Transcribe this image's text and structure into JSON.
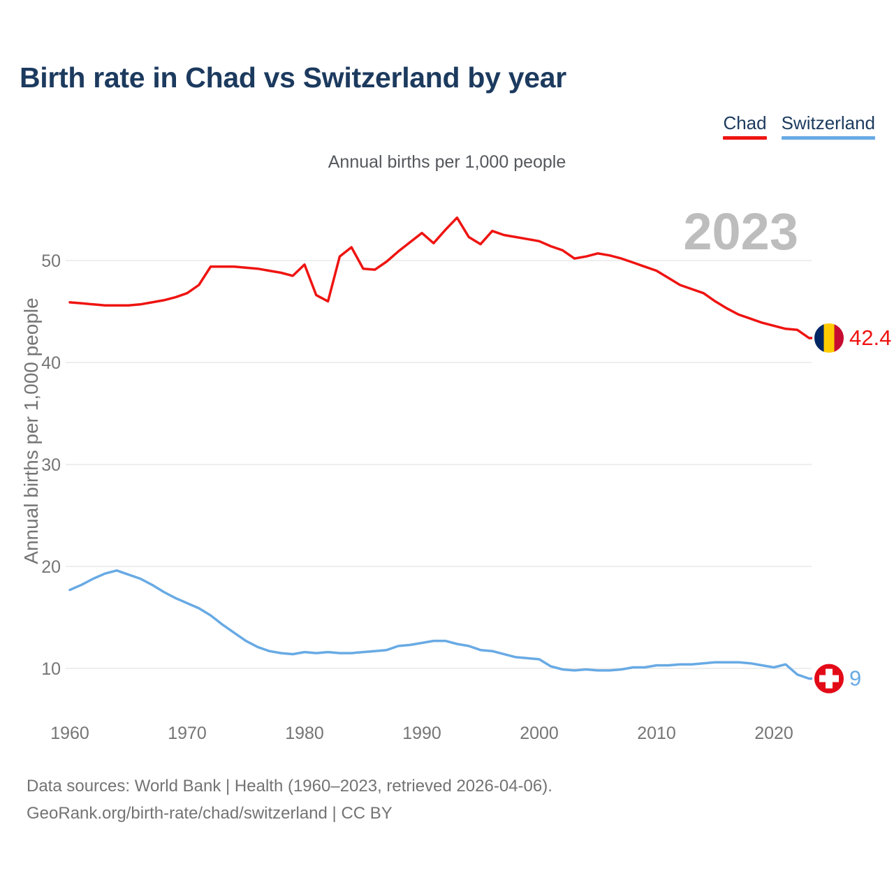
{
  "header": {
    "title": "Birth rate in Chad vs Switzerland by year",
    "subtitle": "Annual births per 1,000 people"
  },
  "legend": {
    "items": [
      {
        "label": "Chad",
        "color": "#ee1411"
      },
      {
        "label": "Switzerland",
        "color": "#68aae4"
      }
    ]
  },
  "watermark": "2023",
  "footer": {
    "line1": "Data sources: World Bank | Health (1960–2023, retrieved 2026-04-06).",
    "line2": "GeoRank.org/birth-rate/chad/switzerland | CC BY"
  },
  "chart_data": {
    "type": "line",
    "title": "Birth rate in Chad vs Switzerland by year",
    "subtitle": "Annual births per 1,000 people",
    "ylabel": "Annual births per 1,000 people",
    "xlabel": "",
    "x_start": 1960,
    "x_end": 2023,
    "xticks": [
      1960,
      1970,
      1980,
      1990,
      2000,
      2010,
      2020
    ],
    "yticks": [
      10,
      20,
      30,
      40,
      50
    ],
    "ylim": [
      6.4,
      55
    ],
    "grid": true,
    "legend_position": "top-right",
    "grid_color": "#e9e9e9",
    "tick_color": "#757575",
    "flag_colors": {
      "chad": [
        "#002664",
        "#fecb00",
        "#c60c30"
      ],
      "switzerland": {
        "bg": "#e30a17",
        "cross": "#ffffff"
      }
    },
    "series": [
      {
        "name": "Chad",
        "color": "#ee1411",
        "end_label": "42.4",
        "flag": "chad",
        "values": [
          45.9,
          45.8,
          45.7,
          45.6,
          45.6,
          45.6,
          45.7,
          45.9,
          46.1,
          46.4,
          46.8,
          47.6,
          49.4,
          49.4,
          49.4,
          49.3,
          49.2,
          49.0,
          48.8,
          48.5,
          49.6,
          46.6,
          46.0,
          50.4,
          51.3,
          49.2,
          49.1,
          49.9,
          50.9,
          51.8,
          52.7,
          51.7,
          53.0,
          54.2,
          52.3,
          51.6,
          52.9,
          52.5,
          52.3,
          52.1,
          51.9,
          51.4,
          51.0,
          50.2,
          50.4,
          50.7,
          50.5,
          50.2,
          49.8,
          49.4,
          49.0,
          48.3,
          47.6,
          47.2,
          46.8,
          46.0,
          45.3,
          44.7,
          44.3,
          43.9,
          43.6,
          43.3,
          43.2,
          42.4
        ]
      },
      {
        "name": "Switzerland",
        "color": "#68aae4",
        "end_label": "9",
        "flag": "switzerland",
        "values": [
          17.7,
          18.2,
          18.8,
          19.3,
          19.6,
          19.2,
          18.8,
          18.2,
          17.5,
          16.9,
          16.4,
          15.9,
          15.2,
          14.3,
          13.5,
          12.7,
          12.1,
          11.7,
          11.5,
          11.4,
          11.6,
          11.5,
          11.6,
          11.5,
          11.5,
          11.6,
          11.7,
          11.8,
          12.2,
          12.3,
          12.5,
          12.7,
          12.7,
          12.4,
          12.2,
          11.8,
          11.7,
          11.4,
          11.1,
          11.0,
          10.9,
          10.2,
          9.9,
          9.8,
          9.9,
          9.8,
          9.8,
          9.9,
          10.1,
          10.1,
          10.3,
          10.3,
          10.4,
          10.4,
          10.5,
          10.6,
          10.6,
          10.6,
          10.5,
          10.3,
          10.1,
          10.4,
          9.4,
          9.0
        ]
      }
    ]
  }
}
